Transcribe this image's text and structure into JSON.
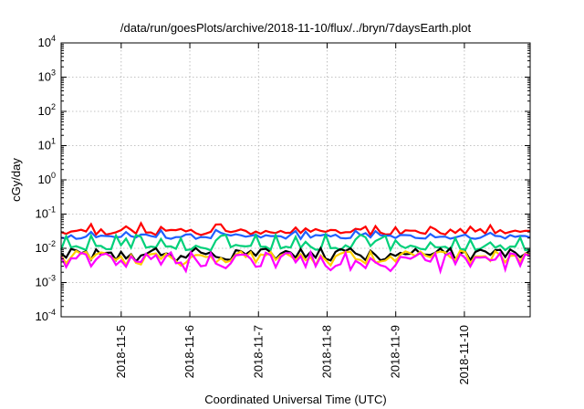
{
  "chart_data": {
    "type": "line",
    "title": "/data/run/goesPlots/archive/2018-11-10/flux/../bryn/7daysEarth.plot",
    "xlabel": "Coordinated Universal Time (UTC)",
    "ylabel": "cGy/day",
    "yscale": "log",
    "ylim": [
      0.0001,
      10000
    ],
    "yticks": [
      {
        "base": "10",
        "exp": "-4",
        "value": 0.0001
      },
      {
        "base": "10",
        "exp": "-3",
        "value": 0.001
      },
      {
        "base": "10",
        "exp": "-2",
        "value": 0.01
      },
      {
        "base": "10",
        "exp": "-1",
        "value": 0.1
      },
      {
        "base": "10",
        "exp": "0",
        "value": 1
      },
      {
        "base": "10",
        "exp": "1",
        "value": 10
      },
      {
        "base": "10",
        "exp": "2",
        "value": 100
      },
      {
        "base": "10",
        "exp": "3",
        "value": 1000
      },
      {
        "base": "10",
        "exp": "4",
        "value": 10000
      }
    ],
    "xlim": [
      "2018-11-04T03:00",
      "2018-11-10T23:00"
    ],
    "xticks": [
      "2018-11-5",
      "2018-11-6",
      "2018-11-7",
      "2018-11-8",
      "2018-11-9",
      "2018-11-10"
    ],
    "grid": true,
    "series": [
      {
        "color": "#ff0000",
        "base": 0.03,
        "var": 0.09,
        "spikeFreq": 0.22,
        "spikeAmp": 0.25
      },
      {
        "color": "#1f5fff",
        "base": 0.022,
        "var": 0.07,
        "spikeFreq": 0.2,
        "spikeAmp": 0.18
      },
      {
        "color": "#00d07a",
        "base": 0.0105,
        "var": 0.08,
        "spikeFreq": 0.35,
        "spikeAmp": 0.35
      },
      {
        "color": "#000000",
        "base": 0.0082,
        "var": 0.1,
        "spikeFreq": 0.4,
        "spikeAmp": -0.25
      },
      {
        "color": "#ffd000",
        "base": 0.0068,
        "var": 0.1,
        "spikeFreq": 0.4,
        "spikeAmp": -0.28
      },
      {
        "color": "#ff00ff",
        "base": 0.0058,
        "var": 0.12,
        "spikeFreq": 0.45,
        "spikeAmp": -0.32
      }
    ]
  }
}
